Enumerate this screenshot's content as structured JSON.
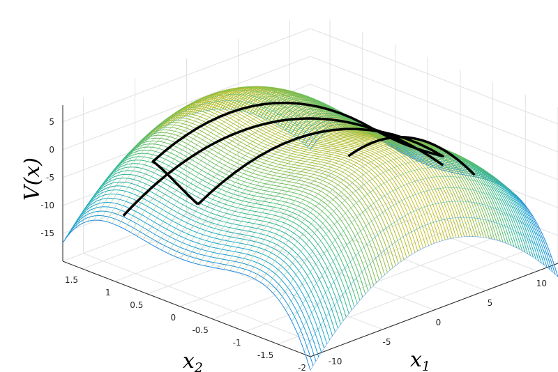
{
  "chart_data": {
    "type": "surface",
    "zlabel": "V(x)",
    "x1label": "x",
    "x1label_sub": "1",
    "x2label": "x",
    "x2label_sub": "2",
    "z_ticks": [
      5,
      0,
      -5,
      -10,
      -15
    ],
    "x1_ticks": [
      -10,
      -5,
      0,
      5,
      10
    ],
    "x2_ticks": [
      1.5,
      1,
      0.5,
      0,
      -0.5,
      -1,
      -1.5,
      -2
    ],
    "x1_range": [
      -12,
      12
    ],
    "x2_range": [
      -2,
      1.8
    ],
    "z_range": [
      -20,
      8
    ],
    "grid": true,
    "colormap": "parula",
    "surface_function": "V = 3 + 3*x2^2 - 0.01*x2^6 - 0.1*x1^2 (approx., saddle-shaped ridge along x2=0)",
    "overlay_curves": [
      {
        "name": "inner closed contour",
        "color": "#000000",
        "closed": true
      },
      {
        "name": "outer separatrix curve",
        "color": "#000000",
        "closed": false
      }
    ]
  }
}
